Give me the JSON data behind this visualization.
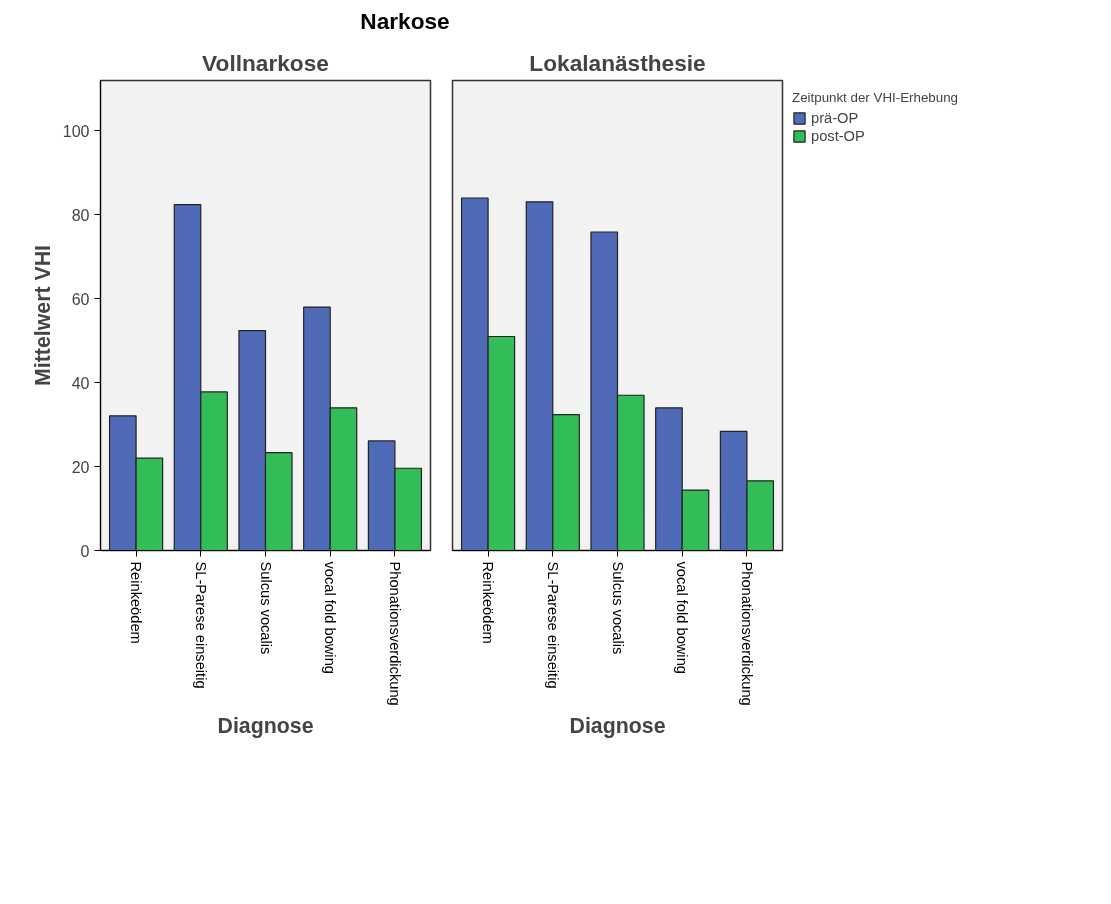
{
  "chart_data": [
    {
      "type": "bar",
      "title": "Vollnarkose",
      "annotations": [
        "Narkose"
      ],
      "xlabel": "Diagnose",
      "ylabel": "Mittelwert VHI",
      "categories": [
        "Reinkeödem",
        "SL-Parese einseitig",
        "Sulcus vocalis",
        "vocal fold bowing",
        "Phonationsverdickung"
      ],
      "series": [
        {
          "color": "#4f6bb8",
          "values": [
            32.1,
            82.4,
            52.4,
            58.0,
            26.1
          ]
        },
        {
          "color": "#33bd58",
          "values": [
            22.0,
            37.8,
            23.3,
            34.0,
            19.6
          ]
        }
      ],
      "ylim": [
        0,
        112
      ],
      "yticks": [
        0,
        20,
        40,
        60,
        80,
        100
      ],
      "grid": false,
      "legend": false
    },
    {
      "type": "bar",
      "title": "Lokalanästhesie",
      "xlabel": "Diagnose",
      "categories": [
        "Reinkeödem",
        "SL-Parese einseitig",
        "Sulcus vocalis",
        "vocal fold bowing",
        "Phonationsverdickung"
      ],
      "series": [
        {
          "name": "prä-OP",
          "color": "#4f6bb8",
          "values": [
            84.0,
            83.1,
            75.9,
            34.0,
            28.4
          ]
        },
        {
          "name": "post-OP",
          "color": "#33bd58",
          "values": [
            51.0,
            32.4,
            37.0,
            14.4,
            16.6
          ]
        }
      ],
      "ylim": [
        0,
        112
      ],
      "yticks": [
        0,
        20,
        40,
        60,
        80,
        100
      ],
      "tick_labels": "x",
      "grid": false,
      "legend": "top right",
      "legend_title": "Zeitpunkt der VHI-Erhebung"
    }
  ]
}
